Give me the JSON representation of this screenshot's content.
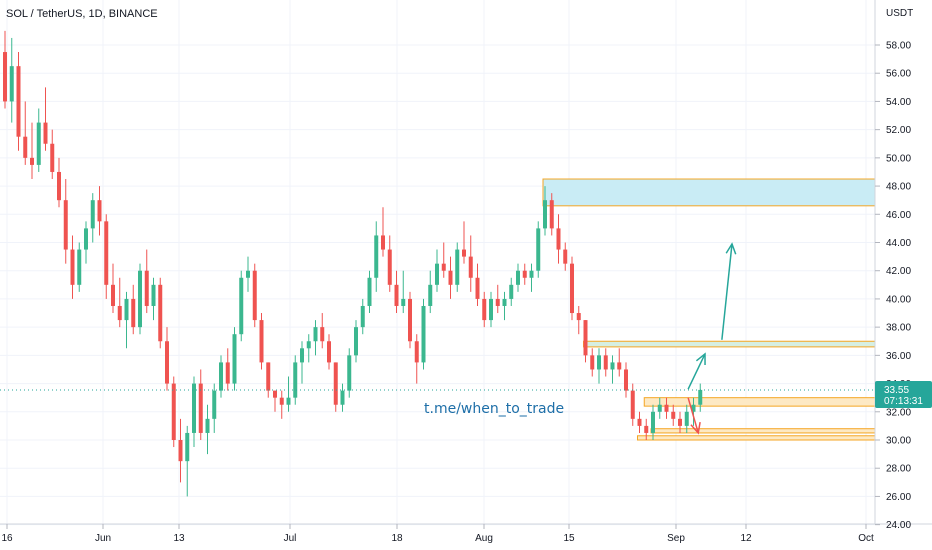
{
  "header": {
    "symbol_title": "SOL / TetherUS, 1D, BINANCE"
  },
  "watermark": {
    "text": "t.me/when_to_trade"
  },
  "price_axis": {
    "unit": "USDT",
    "ticks": [
      "58.00",
      "56.00",
      "54.00",
      "52.00",
      "50.00",
      "48.00",
      "46.00",
      "44.00",
      "42.00",
      "40.00",
      "38.00",
      "36.00",
      "34.00",
      "32.00",
      "30.00",
      "28.00",
      "26.00",
      "24.00"
    ]
  },
  "time_axis": {
    "labels": [
      "16",
      "Jun",
      "13",
      "Jul",
      "18",
      "Aug",
      "15",
      "Sep",
      "12",
      "Oct"
    ]
  },
  "current_price": {
    "price": "33.55",
    "countdown": "07:13:31"
  },
  "colors": {
    "up": "#26a69a",
    "up_body": "#3bb78f",
    "down": "#ef5350",
    "zone_blue_fill": "#c9ecf5",
    "zone_border": "#f5a623",
    "zone_green_fill": "#d6efe2",
    "zone_orange_fill": "#fde9c4",
    "arrow_up": "#26a69a",
    "arrow_down": "#ef5350"
  },
  "chart_data": {
    "type": "candlestick",
    "title": "SOL / TetherUS, 1D, BINANCE",
    "ylim": [
      24,
      60
    ],
    "candles": [
      [
        57.5,
        59.0,
        53.5,
        54.0
      ],
      [
        54.0,
        58.5,
        52.5,
        56.5
      ],
      [
        56.5,
        57.5,
        50.5,
        51.5
      ],
      [
        51.5,
        54.0,
        49.5,
        50.0
      ],
      [
        50.0,
        52.5,
        48.5,
        49.5
      ],
      [
        49.5,
        53.5,
        49.0,
        52.5
      ],
      [
        52.5,
        55.0,
        50.5,
        51.0
      ],
      [
        51.0,
        52.0,
        48.5,
        49.0
      ],
      [
        49.0,
        50.0,
        46.5,
        47.0
      ],
      [
        47.0,
        48.5,
        42.5,
        43.5
      ],
      [
        43.5,
        44.5,
        40.0,
        41.0
      ],
      [
        41.0,
        44.0,
        40.5,
        43.5
      ],
      [
        43.5,
        45.5,
        42.5,
        45.0
      ],
      [
        45.0,
        47.5,
        44.0,
        47.0
      ],
      [
        47.0,
        48.0,
        44.5,
        45.5
      ],
      [
        45.5,
        46.0,
        40.0,
        41.0
      ],
      [
        41.0,
        42.5,
        39.0,
        39.5
      ],
      [
        39.5,
        41.5,
        38.0,
        38.5
      ],
      [
        38.5,
        40.5,
        36.5,
        40.0
      ],
      [
        40.0,
        41.0,
        37.5,
        38.0
      ],
      [
        38.0,
        42.5,
        37.5,
        42.0
      ],
      [
        42.0,
        43.5,
        39.0,
        39.5
      ],
      [
        39.5,
        41.5,
        38.5,
        41.0
      ],
      [
        41.0,
        41.5,
        36.5,
        37.0
      ],
      [
        37.0,
        38.0,
        33.5,
        34.0
      ],
      [
        34.0,
        34.5,
        29.5,
        30.0
      ],
      [
        30.0,
        31.5,
        27.0,
        28.5
      ],
      [
        28.5,
        31.0,
        26.0,
        30.5
      ],
      [
        30.5,
        34.5,
        29.5,
        34.0
      ],
      [
        34.0,
        35.0,
        30.0,
        30.5
      ],
      [
        30.5,
        32.5,
        29.0,
        31.5
      ],
      [
        31.5,
        34.0,
        30.5,
        33.5
      ],
      [
        33.5,
        36.0,
        33.0,
        35.5
      ],
      [
        35.5,
        36.5,
        33.5,
        34.0
      ],
      [
        34.0,
        38.0,
        33.5,
        37.5
      ],
      [
        37.5,
        42.0,
        37.0,
        41.5
      ],
      [
        41.5,
        43.0,
        40.5,
        42.0
      ],
      [
        42.0,
        42.5,
        38.0,
        38.5
      ],
      [
        38.5,
        39.0,
        35.0,
        35.5
      ],
      [
        35.5,
        35.5,
        33.0,
        33.5
      ],
      [
        33.5,
        33.5,
        32.0,
        33.0
      ],
      [
        33.0,
        33.5,
        31.5,
        32.5
      ],
      [
        32.5,
        34.5,
        32.0,
        33.0
      ],
      [
        33.0,
        36.0,
        32.5,
        35.5
      ],
      [
        35.5,
        37.0,
        34.0,
        36.5
      ],
      [
        36.5,
        37.5,
        35.5,
        37.0
      ],
      [
        37.0,
        38.5,
        36.0,
        38.0
      ],
      [
        38.0,
        39.0,
        36.5,
        37.0
      ],
      [
        37.0,
        37.5,
        35.0,
        35.5
      ],
      [
        35.5,
        35.5,
        32.0,
        32.5
      ],
      [
        32.5,
        34.0,
        32.0,
        33.5
      ],
      [
        33.5,
        36.5,
        33.0,
        36.0
      ],
      [
        36.0,
        38.5,
        35.5,
        38.0
      ],
      [
        38.0,
        40.0,
        37.5,
        39.5
      ],
      [
        39.5,
        42.0,
        39.0,
        41.5
      ],
      [
        41.5,
        45.5,
        40.5,
        44.5
      ],
      [
        44.5,
        46.5,
        43.0,
        43.5
      ],
      [
        43.5,
        44.5,
        40.5,
        41.0
      ],
      [
        41.0,
        42.0,
        39.0,
        39.5
      ],
      [
        39.5,
        42.0,
        39.0,
        40.0
      ],
      [
        40.0,
        40.5,
        36.5,
        37.0
      ],
      [
        37.0,
        37.5,
        34.0,
        35.5
      ],
      [
        35.5,
        40.0,
        35.0,
        39.5
      ],
      [
        39.5,
        42.0,
        39.0,
        41.0
      ],
      [
        41.0,
        43.5,
        40.5,
        42.5
      ],
      [
        42.5,
        44.0,
        41.5,
        42.0
      ],
      [
        42.0,
        43.0,
        40.0,
        41.0
      ],
      [
        41.0,
        44.0,
        40.5,
        43.5
      ],
      [
        43.5,
        45.5,
        42.5,
        43.0
      ],
      [
        43.0,
        44.5,
        40.5,
        41.5
      ],
      [
        41.5,
        42.5,
        39.5,
        40.0
      ],
      [
        40.0,
        40.5,
        38.0,
        38.5
      ],
      [
        38.5,
        40.5,
        38.0,
        40.0
      ],
      [
        40.0,
        41.0,
        39.0,
        39.5
      ],
      [
        39.5,
        40.5,
        38.5,
        40.0
      ],
      [
        40.0,
        41.5,
        39.5,
        41.0
      ],
      [
        41.0,
        42.5,
        40.5,
        42.0
      ],
      [
        42.0,
        42.5,
        41.0,
        41.5
      ],
      [
        41.5,
        42.5,
        40.5,
        42.0
      ],
      [
        42.0,
        45.5,
        41.5,
        45.0
      ],
      [
        45.0,
        48.0,
        44.5,
        47.0
      ],
      [
        47.0,
        47.5,
        44.5,
        45.0
      ],
      [
        45.0,
        46.0,
        42.5,
        43.5
      ],
      [
        43.5,
        44.0,
        42.0,
        42.5
      ],
      [
        42.5,
        43.0,
        38.5,
        39.0
      ],
      [
        39.0,
        39.5,
        37.5,
        38.5
      ],
      [
        38.5,
        38.5,
        35.5,
        36.0
      ],
      [
        36.0,
        36.5,
        34.5,
        35.0
      ],
      [
        35.0,
        36.5,
        34.0,
        36.0
      ],
      [
        36.0,
        36.5,
        34.5,
        35.0
      ],
      [
        35.0,
        36.0,
        34.0,
        35.5
      ],
      [
        35.5,
        36.5,
        34.5,
        35.0
      ],
      [
        35.0,
        35.5,
        33.0,
        33.5
      ],
      [
        33.5,
        34.0,
        31.0,
        31.5
      ],
      [
        31.5,
        32.0,
        30.5,
        31.0
      ],
      [
        31.0,
        31.5,
        30.0,
        30.5
      ],
      [
        30.5,
        32.5,
        30.0,
        32.0
      ],
      [
        32.0,
        33.0,
        31.5,
        32.5
      ],
      [
        32.5,
        33.0,
        31.5,
        32.0
      ],
      [
        32.0,
        32.5,
        31.0,
        31.5
      ],
      [
        31.5,
        32.0,
        30.5,
        31.0
      ],
      [
        31.0,
        32.5,
        30.5,
        32.0
      ],
      [
        32.0,
        33.0,
        31.0,
        32.5
      ],
      [
        32.5,
        34.0,
        32.0,
        33.55
      ]
    ],
    "zones": [
      {
        "from_index": 80,
        "top": 48.5,
        "bottom": 46.6,
        "fill": "blue"
      },
      {
        "from_index": 86,
        "top": 37.0,
        "bottom": 36.6,
        "fill": "green"
      },
      {
        "from_index": 95,
        "top": 33.0,
        "bottom": 32.4,
        "fill": "orange"
      },
      {
        "from_index": 96,
        "top": 30.8,
        "bottom": 30.5,
        "fill": "orange"
      },
      {
        "from_index": 94,
        "top": 30.3,
        "bottom": 30.0,
        "fill": "orange"
      }
    ],
    "arrows": [
      {
        "from": [
          101.5,
          33.6
        ],
        "to": [
          104.0,
          36.1
        ],
        "color": "up"
      },
      {
        "from": [
          106.5,
          37.1
        ],
        "to": [
          108.0,
          43.9
        ],
        "color": "up"
      },
      {
        "from": [
          101.5,
          33.0
        ],
        "to": [
          103.0,
          30.5
        ],
        "color": "down"
      }
    ]
  }
}
